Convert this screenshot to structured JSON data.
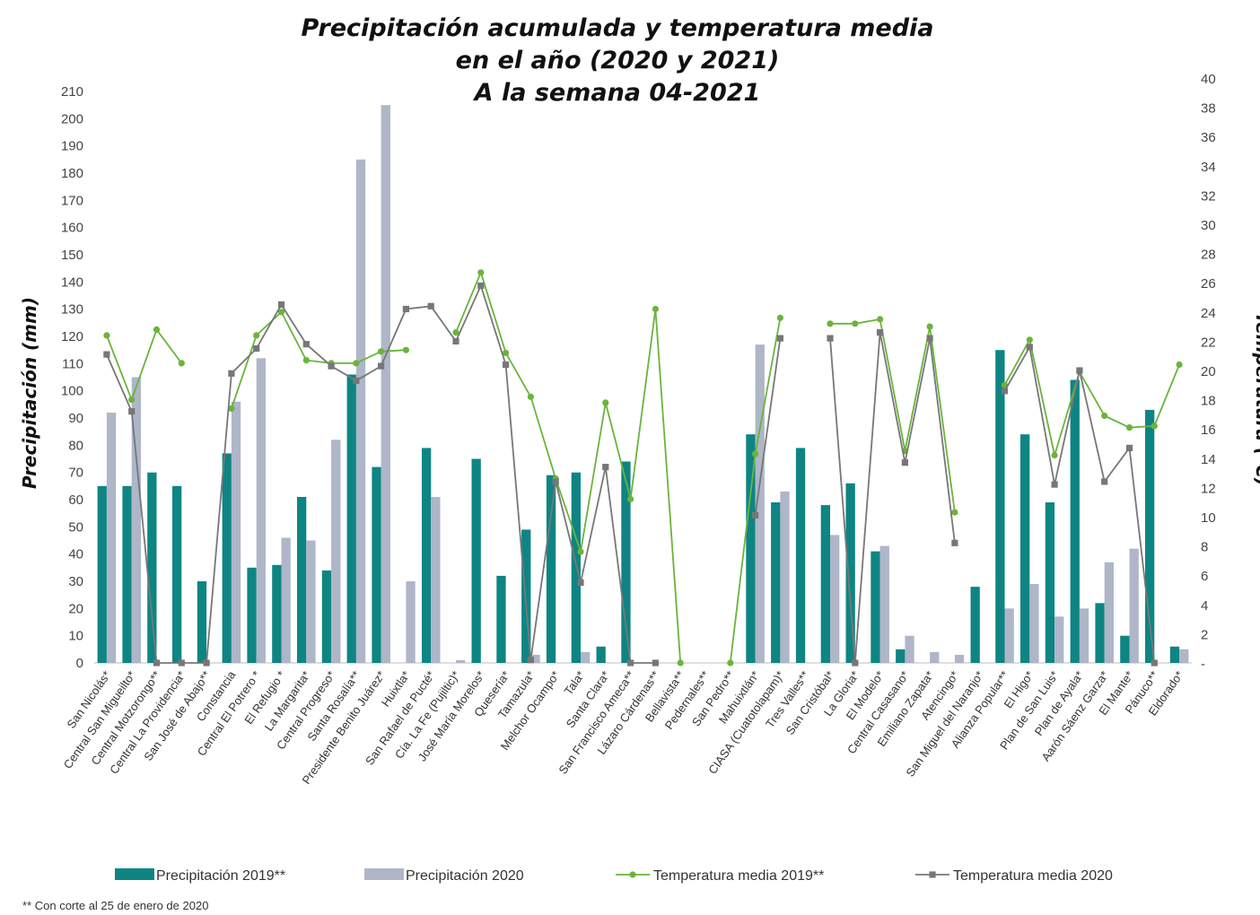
{
  "chart_data": {
    "type": "bar",
    "title_lines": [
      "Precipitación acumulada y temperatura media",
      "en el año (2020 y 2021)",
      "A la semana 04-2021"
    ],
    "ylabel": "Precipitación (mm)",
    "y2label": "Temperatura (°C)",
    "ylim": [
      0,
      210
    ],
    "y_ticks": [
      "0",
      "10",
      "20",
      "30",
      "40",
      "50",
      "60",
      "70",
      "80",
      "90",
      "100",
      "110",
      "120",
      "130",
      "140",
      "150",
      "160",
      "170",
      "180",
      "190",
      "200",
      "210"
    ],
    "y2lim": [
      0,
      40
    ],
    "y2_ticks": [
      "-",
      "2",
      "4",
      "6",
      "8",
      "10",
      "12",
      "14",
      "16",
      "18",
      "20",
      "22",
      "24",
      "26",
      "28",
      "30",
      "32",
      "34",
      "36",
      "38",
      "40"
    ],
    "categories": [
      "San Nicolás*",
      "Central San Migueilto*",
      "Central Motzorongo**",
      "Central La Providencia*",
      "San José de Abajo**",
      "Constancia",
      "Central El Potrero *",
      "El Refugio *",
      "La Margarita*",
      "Central Progreso*",
      "Santa Rosalía**",
      "Presidente Benito Juárez*",
      "Huixtla*",
      "San Rafael de Pucté*",
      "Cía. La Fe (Pujiltic)*",
      "José María Morelos*",
      "Quesería*",
      "Tamazula*",
      "Melchor Ocampo*",
      "Tala*",
      "Santa Clara*",
      "San Francisco Ameca**",
      "Lázaro Cárdenas**",
      "Bellavista**",
      "Pedernales**",
      "San Pedro**",
      "Mahuixtlán*",
      "CIASA (Cuatotolapam)*",
      "Tres Valles**",
      "San Cristóbal*",
      "La Gloria*",
      "El Modelo*",
      "Central Casasano*",
      "Emiliano Zapata*",
      "Atencingo*",
      "San Miguel del Naranjo*",
      "Alianza Popular**",
      "El Higo*",
      "Plan de San Luis*",
      "Plan de Ayala*",
      "Aarón Sáenz Garza*",
      "El Mante*",
      "Pánuco**",
      "Eldorado*"
    ],
    "series": [
      {
        "name": "Precipitación 2019**",
        "kind": "bar",
        "axis": "left",
        "color": "#0e8583",
        "values": [
          65,
          65,
          70,
          65,
          30,
          77,
          35,
          36,
          61,
          34,
          106,
          72,
          0,
          79,
          0,
          75,
          32,
          49,
          69,
          70,
          6,
          74,
          0,
          0,
          0,
          0,
          84,
          59,
          79,
          58,
          66,
          41,
          5,
          0,
          0,
          28,
          115,
          84,
          59,
          104,
          22,
          10,
          93,
          6
        ]
      },
      {
        "name": "Precipitación 2020",
        "kind": "bar",
        "axis": "left",
        "color": "#aeb6c8",
        "values": [
          92,
          105,
          0,
          0,
          0,
          96,
          112,
          46,
          45,
          82,
          185,
          205,
          30,
          61,
          1,
          0,
          0,
          3,
          0,
          4,
          0,
          0,
          0,
          0,
          0,
          0,
          117,
          63,
          0,
          47,
          0,
          43,
          10,
          4,
          3,
          0,
          20,
          29,
          17,
          20,
          37,
          42,
          0,
          5
        ]
      },
      {
        "name": "Temperatura media 2019**",
        "kind": "line",
        "axis": "right",
        "color": "#6ab43c",
        "values": [
          22.4,
          18,
          22.8,
          20.5,
          null,
          17.4,
          22.4,
          24,
          20.7,
          20.5,
          20.5,
          21.3,
          21.4,
          null,
          22.6,
          26.7,
          21.2,
          18.2,
          12.6,
          7.6,
          17.8,
          11.2,
          24.2,
          0,
          null,
          0,
          14.3,
          23.6,
          null,
          23.2,
          23.2,
          23.5,
          14.5,
          23,
          10.3,
          null,
          19,
          22.1,
          14.2,
          19.9,
          16.9,
          16.1,
          16.2,
          20.4
        ]
      },
      {
        "name": "Temperatura media 2020",
        "kind": "line",
        "axis": "right",
        "color": "#777777",
        "values": [
          21.1,
          17.2,
          0,
          0,
          0,
          19.8,
          21.5,
          24.5,
          21.8,
          20.3,
          19.3,
          20.3,
          24.2,
          24.4,
          22,
          25.8,
          20.4,
          0.2,
          12.4,
          5.5,
          13.4,
          0,
          0,
          null,
          null,
          null,
          10.1,
          22.2,
          null,
          22.2,
          0,
          22.6,
          13.7,
          22.2,
          8.2,
          null,
          18.6,
          21.6,
          12.2,
          20,
          12.4,
          14.7,
          0,
          null
        ]
      }
    ],
    "legend_position": "bottom",
    "grid": false,
    "footnote": "** Con corte al 25 de enero de 2020"
  }
}
